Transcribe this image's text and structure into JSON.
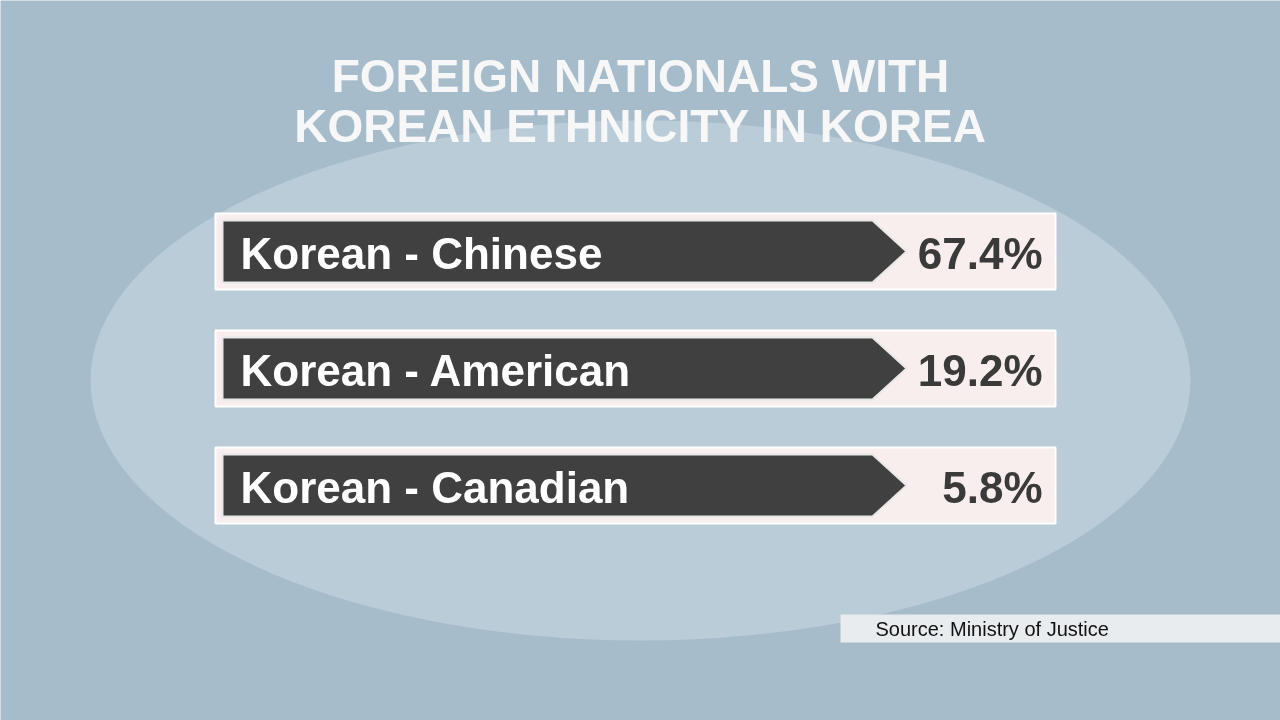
{
  "chart_data": {
    "type": "other",
    "title": "FOREIGN NATIONALS WITH KOREAN ETHNICITY IN KOREA",
    "categories": [
      "Korean - Chinese",
      "Korean - American",
      "Korean - Canadian"
    ],
    "values": [
      67.4,
      19.2,
      5.8
    ],
    "value_labels": [
      "67.4%",
      "19.2%",
      "5.8%"
    ],
    "annotations": [
      "Source: Ministry of Justice"
    ]
  }
}
